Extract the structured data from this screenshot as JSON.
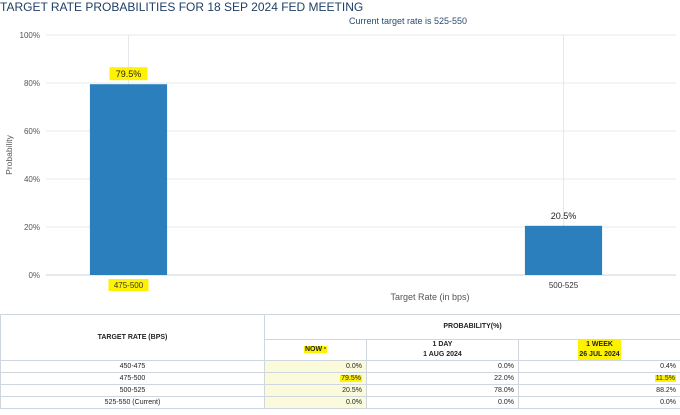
{
  "chart_data": {
    "type": "bar",
    "title": "TARGET RATE PROBABILITIES FOR 18 SEP 2024 FED MEETING",
    "subtitle": "Current target rate is 525-550",
    "categories": [
      "475-500",
      "500-525"
    ],
    "values": [
      79.5,
      20.5
    ],
    "data_labels": [
      "79.5%",
      "20.5%"
    ],
    "xlabel": "Target Rate (in bps)",
    "ylabel": "Probability",
    "ylim": [
      0,
      100
    ],
    "yticks": [
      "0%",
      "20%",
      "40%",
      "60%",
      "80%",
      "100%"
    ],
    "grid": true,
    "bar_color": "#2b7fbd",
    "highlight_color": "#fff200",
    "highlighted": [
      "79.5%",
      "475-500"
    ]
  },
  "table": {
    "header_rate": "TARGET RATE (BPS)",
    "header_prob": "PROBABILITY(%)",
    "col_now": "NOW",
    "col_now_mark": "*",
    "col_1day_line1": "1 DAY",
    "col_1day_line2": "1 AUG 2024",
    "col_1week_line1": "1 WEEK",
    "col_1week_line2": "26 JUL 2024",
    "rows": [
      {
        "rate": "450-475",
        "now": "0.0%",
        "day": "0.0%",
        "week": "0.4%"
      },
      {
        "rate": "475-500",
        "now": "79.5%",
        "day": "22.0%",
        "week": "11.5%"
      },
      {
        "rate": "500-525",
        "now": "20.5%",
        "day": "78.0%",
        "week": "88.2%"
      },
      {
        "rate": "525-550 (Current)",
        "now": "0.0%",
        "day": "0.0%",
        "week": "0.0%"
      }
    ]
  }
}
